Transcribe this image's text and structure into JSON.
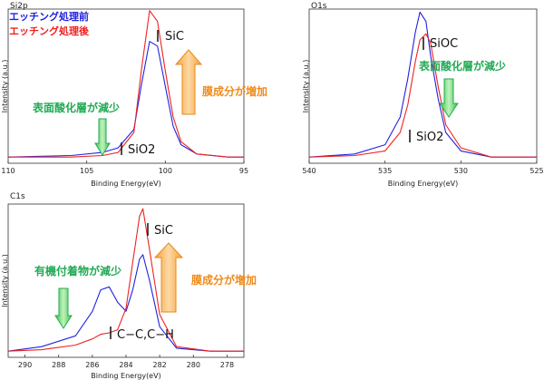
{
  "colors": {
    "before": "#2222dd",
    "after": "#ee2222",
    "green": "#22aa55",
    "orange": "#f08a1a"
  },
  "legend": {
    "before": "エッチング処理前",
    "after": "エッチング処理後"
  },
  "chart_data": [
    {
      "type": "line",
      "title": "Si2p",
      "xlabel": "Binding Energy(eV)",
      "ylabel": "Intensity (a.u.)",
      "xlim": [
        110,
        95
      ],
      "xticks": [
        "110",
        "105",
        "100",
        "95"
      ],
      "series": [
        {
          "name": "エッチング処理前",
          "x": [
            110,
            106,
            104,
            103,
            102,
            101.5,
            101,
            100.5,
            100,
            99.5,
            99,
            98,
            96,
            95
          ],
          "y": [
            0.04,
            0.05,
            0.07,
            0.1,
            0.22,
            0.52,
            0.79,
            0.76,
            0.5,
            0.24,
            0.12,
            0.06,
            0.04,
            0.04
          ]
        },
        {
          "name": "エッチング処理後",
          "x": [
            110,
            106,
            104,
            103,
            102,
            101.5,
            101,
            100.5,
            100,
            99.5,
            99,
            98,
            96,
            95
          ],
          "y": [
            0.04,
            0.04,
            0.05,
            0.07,
            0.2,
            0.62,
            0.99,
            0.92,
            0.6,
            0.3,
            0.14,
            0.06,
            0.04,
            0.04
          ]
        }
      ],
      "annotations": [
        "SiC",
        "SiO2",
        "膜成分が増加",
        "表面酸化層が減少"
      ]
    },
    {
      "type": "line",
      "title": "O1s",
      "xlabel": "Binding Energy(eV)",
      "ylabel": "Intensity (a.u.)",
      "xlim": [
        540,
        525
      ],
      "xticks": [
        "540",
        "535",
        "530",
        "525"
      ],
      "series": [
        {
          "name": "エッチング処理前",
          "x": [
            540,
            537,
            535,
            534,
            533.5,
            533,
            532.7,
            532.3,
            532,
            531.5,
            531,
            530,
            528,
            525
          ],
          "y": [
            0.04,
            0.06,
            0.12,
            0.3,
            0.55,
            0.85,
            0.98,
            0.92,
            0.7,
            0.42,
            0.2,
            0.08,
            0.04,
            0.04
          ]
        },
        {
          "name": "エッチング処理後",
          "x": [
            540,
            537,
            535,
            534,
            533.5,
            533,
            532.7,
            532.3,
            532,
            531.5,
            531,
            530,
            528,
            525
          ],
          "y": [
            0.04,
            0.05,
            0.08,
            0.2,
            0.38,
            0.66,
            0.8,
            0.84,
            0.78,
            0.5,
            0.25,
            0.1,
            0.04,
            0.04
          ]
        }
      ],
      "annotations": [
        "SiOC",
        "SiO2",
        "表面酸化層が減少"
      ]
    },
    {
      "type": "line",
      "title": "C1s",
      "xlabel": "Binding Energy(eV)",
      "ylabel": "Intensity (a.u.)",
      "xlim": [
        291,
        277
      ],
      "xticks": [
        "290",
        "288",
        "286",
        "284",
        "282",
        "280",
        "278"
      ],
      "series": [
        {
          "name": "エッチング処理前",
          "x": [
            291,
            289,
            287,
            286,
            285.5,
            285,
            284.5,
            284,
            283.6,
            283.2,
            283,
            282.6,
            282,
            281,
            279,
            277
          ],
          "y": [
            0.04,
            0.07,
            0.14,
            0.3,
            0.44,
            0.46,
            0.36,
            0.3,
            0.44,
            0.64,
            0.67,
            0.5,
            0.2,
            0.06,
            0.04,
            0.04
          ]
        },
        {
          "name": "エッチング処理後",
          "x": [
            291,
            289,
            287,
            286,
            285.5,
            285,
            284.5,
            284,
            283.6,
            283.2,
            283,
            282.6,
            282,
            281,
            279,
            277
          ],
          "y": [
            0.04,
            0.05,
            0.08,
            0.12,
            0.15,
            0.16,
            0.18,
            0.32,
            0.62,
            0.92,
            0.97,
            0.7,
            0.28,
            0.07,
            0.04,
            0.04
          ]
        }
      ],
      "annotations": [
        "SiC",
        "C−C,C−H",
        "膜成分が増加",
        "有機付着物が減少"
      ]
    }
  ],
  "labels": {
    "si2p_sic": "SiC",
    "si2p_sio2": "SiO2",
    "si2p_orange": "膜成分が増加",
    "si2p_green": "表面酸化層が減少",
    "o1s_sioc": "SiOC",
    "o1s_sio2": "SiO2",
    "o1s_green": "表面酸化層が減少",
    "c1s_sic": "SiC",
    "c1s_cc": "C−C,C−H",
    "c1s_orange": "膜成分が増加",
    "c1s_green": "有機付着物が減少"
  }
}
